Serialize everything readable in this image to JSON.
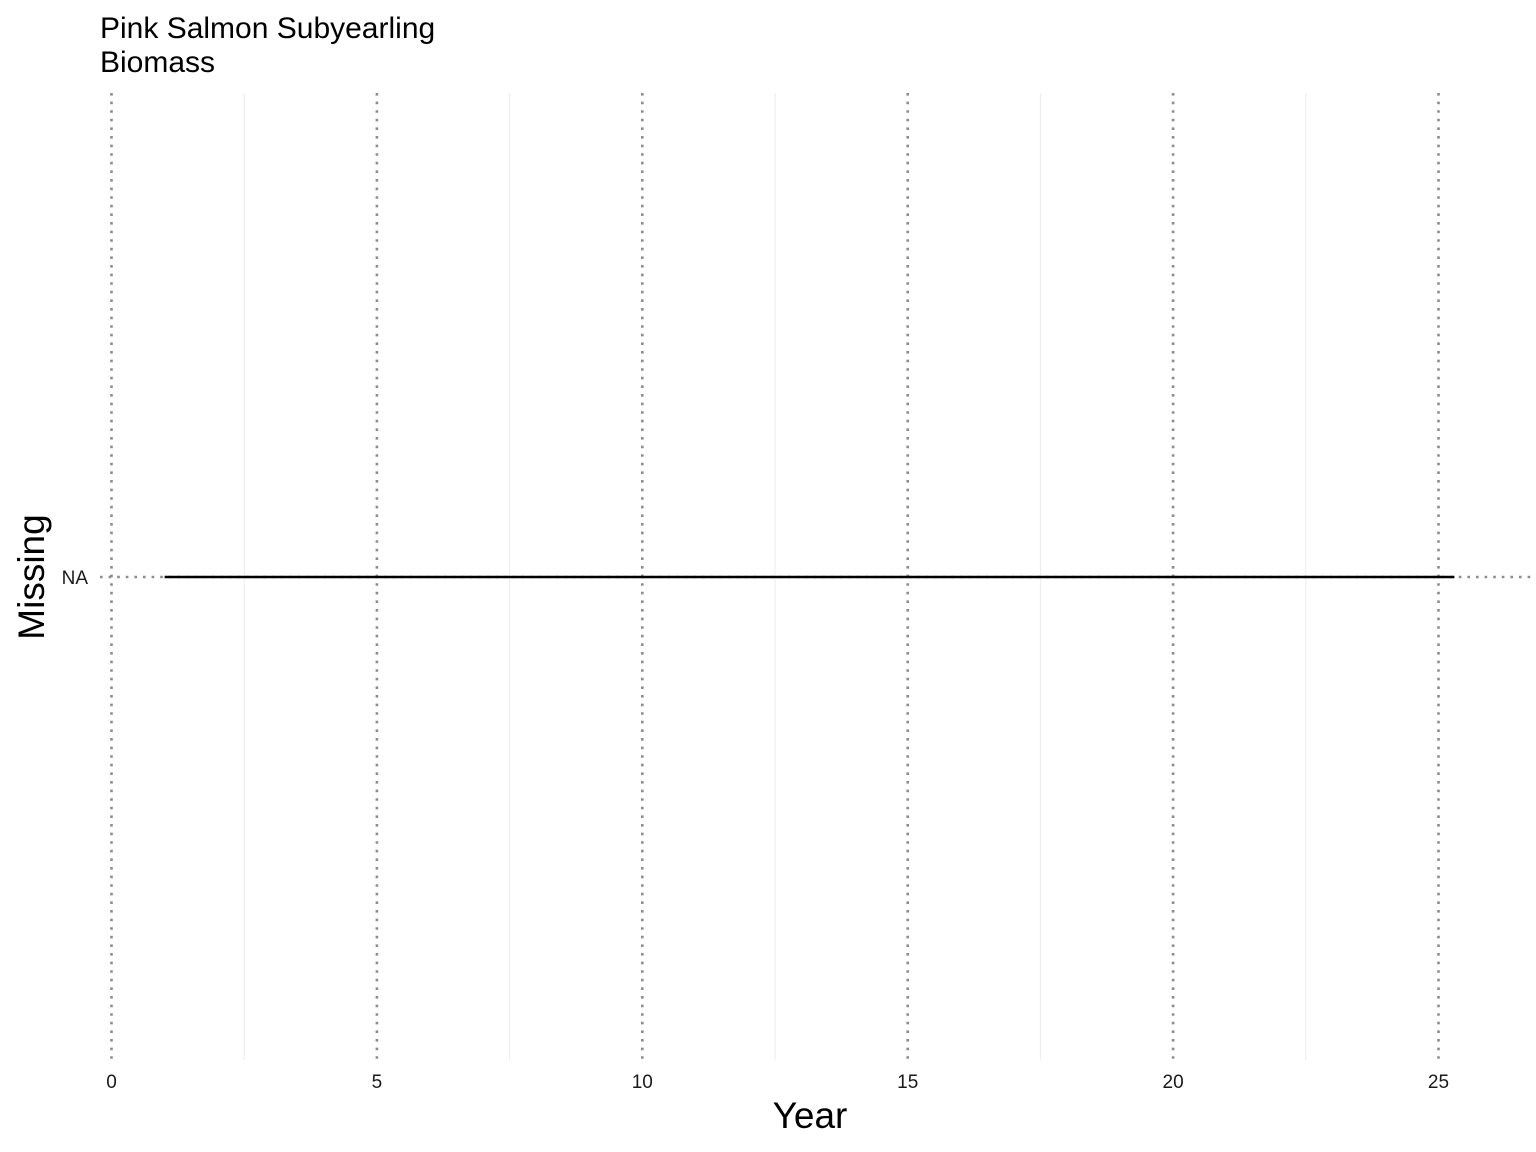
{
  "chart_data": {
    "type": "line",
    "title": [
      "Pink Salmon Subyearling",
      "Biomass"
    ],
    "xlabel": "Year",
    "ylabel": "Missing",
    "xlim": [
      0,
      26.4
    ],
    "x_ticks": [
      0,
      5,
      10,
      15,
      20,
      25
    ],
    "x_tick_labels": [
      "0",
      "5",
      "10",
      "15",
      "20",
      "25"
    ],
    "x_minor_ticks": [
      2.5,
      7.5,
      12.5,
      17.5,
      22.5
    ],
    "y_categories": [
      "NA"
    ],
    "grid": true,
    "series": [
      {
        "name": "Biomass",
        "x_start": 1,
        "x_end": 25.3,
        "y": "NA"
      }
    ],
    "colors": {
      "line": "#000000",
      "major_grid": "#8c8c8c",
      "minor_grid": "#ebebeb"
    }
  }
}
